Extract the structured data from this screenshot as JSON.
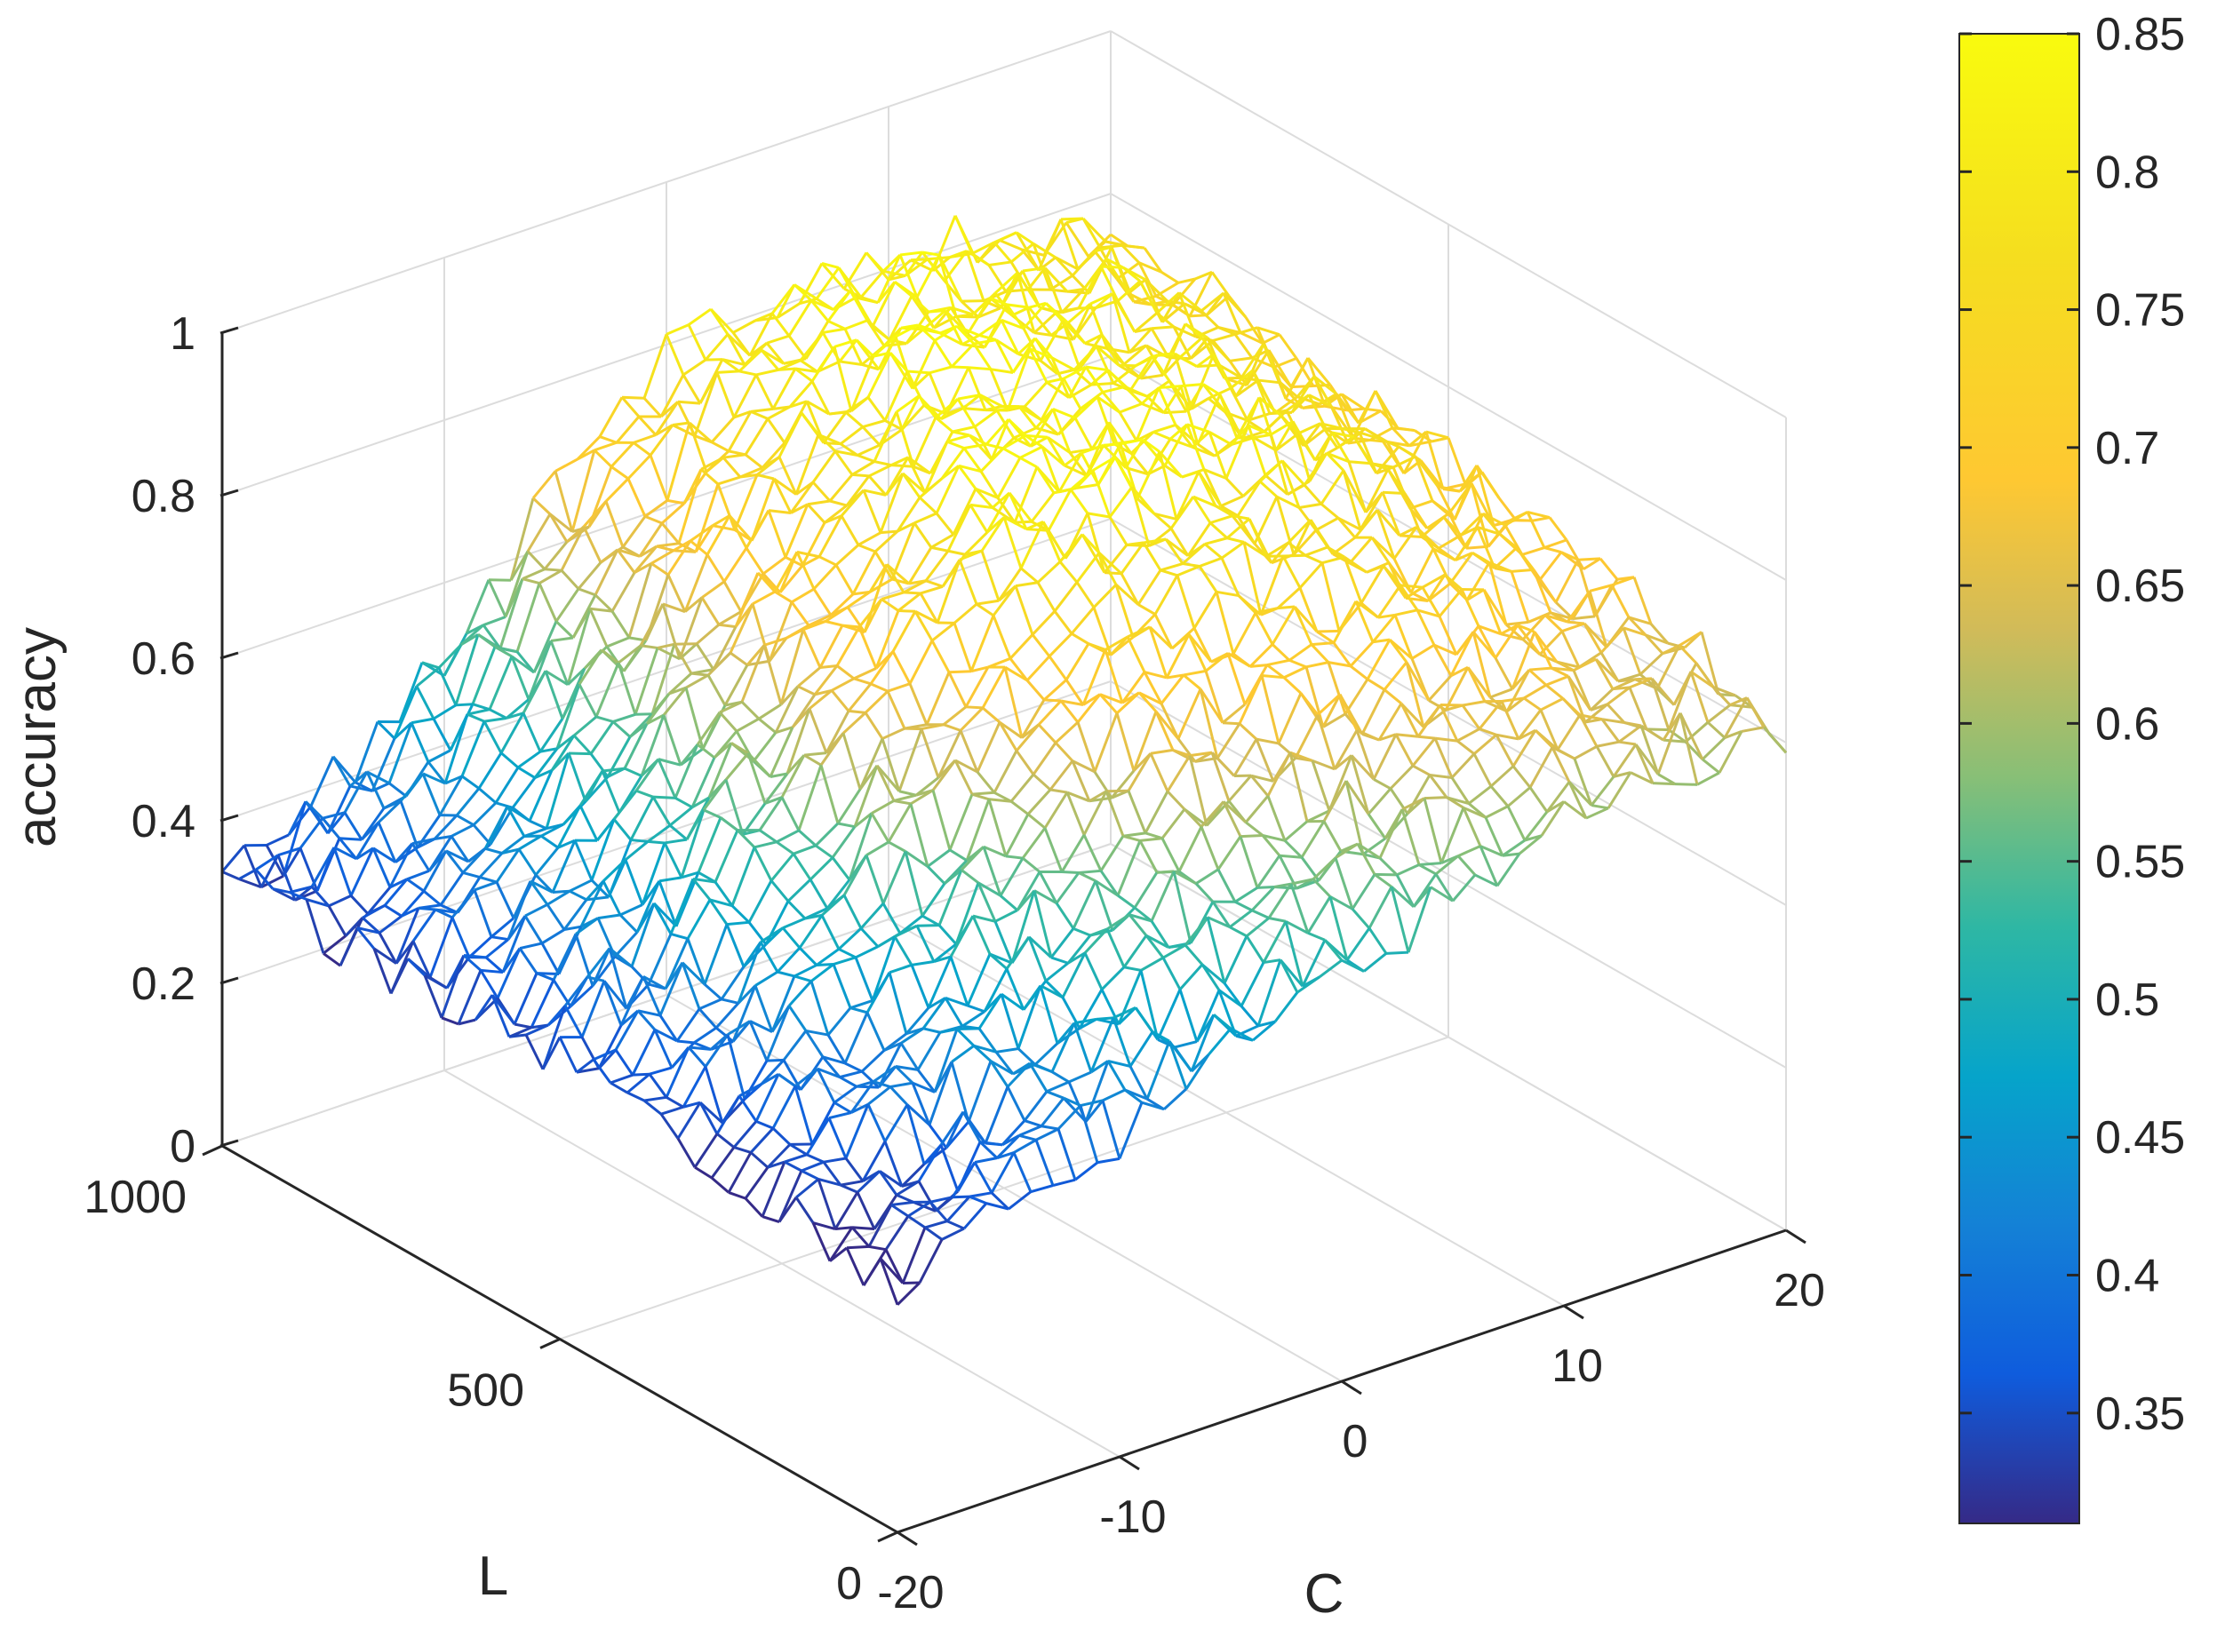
{
  "chart_data": {
    "type": "surface-mesh",
    "title": "",
    "xlabel": "C",
    "ylabel": "L",
    "zlabel": "accuracy",
    "x_range": [
      -20,
      20
    ],
    "y_range": [
      0,
      1000
    ],
    "z_range": [
      0,
      1
    ],
    "x_ticks": [
      "-20",
      "-10",
      "0",
      "10",
      "20"
    ],
    "y_ticks": [
      "0",
      "500",
      "1000"
    ],
    "z_ticks": [
      "0",
      "0.2",
      "0.4",
      "0.6",
      "0.8",
      "1"
    ],
    "grid": true,
    "colormap": "parula",
    "colorbar": {
      "range": [
        0.31,
        0.85
      ],
      "ticks": [
        "0.35",
        "0.4",
        "0.45",
        "0.5",
        "0.55",
        "0.6",
        "0.65",
        "0.7",
        "0.75",
        "0.8",
        "0.85"
      ],
      "position": "right"
    },
    "surface_profile": {
      "description_points_C": [
        -20,
        -15,
        -10,
        -5,
        0,
        5,
        10,
        15,
        20
      ],
      "accuracy_at_L_1000": [
        0.33,
        0.4,
        0.52,
        0.66,
        0.78,
        0.82,
        0.82,
        0.8,
        0.75
      ],
      "accuracy_at_L_500": [
        0.35,
        0.45,
        0.58,
        0.7,
        0.8,
        0.82,
        0.81,
        0.78,
        0.72
      ],
      "accuracy_at_L_0": [
        0.3,
        0.35,
        0.4,
        0.45,
        0.5,
        0.55,
        0.6,
        0.62,
        0.62
      ]
    }
  }
}
